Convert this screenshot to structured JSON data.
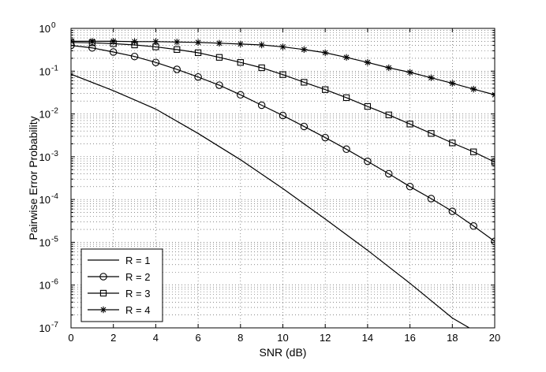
{
  "chart_data": {
    "type": "line",
    "xlabel": "SNR (dB)",
    "ylabel": "Pairwise Error Probability",
    "xlim": [
      0,
      20
    ],
    "ylim": [
      1e-07,
      1
    ],
    "yscale": "log",
    "grid": true,
    "legend_position": "bottom-left",
    "x_ticks": [
      0,
      2,
      4,
      6,
      8,
      10,
      12,
      14,
      16,
      18,
      20
    ],
    "y_ticks": [
      {
        "base": "10",
        "exp": "-7",
        "value": 1e-07
      },
      {
        "base": "10",
        "exp": "-6",
        "value": 1e-06
      },
      {
        "base": "10",
        "exp": "-5",
        "value": 1e-05
      },
      {
        "base": "10",
        "exp": "-4",
        "value": 0.0001
      },
      {
        "base": "10",
        "exp": "-3",
        "value": 0.001
      },
      {
        "base": "10",
        "exp": "-2",
        "value": 0.01
      },
      {
        "base": "10",
        "exp": "-1",
        "value": 0.1
      },
      {
        "base": "10",
        "exp": "0",
        "value": 1
      }
    ],
    "series": [
      {
        "name": "R = 1",
        "marker": "none",
        "x": [
          0,
          2,
          4,
          6,
          8,
          10,
          12,
          14,
          16,
          18,
          18.8
        ],
        "y": [
          0.085,
          0.035,
          0.013,
          0.0035,
          0.00085,
          0.00018,
          3.5e-05,
          6.5e-06,
          1.1e-06,
          1.7e-07,
          1e-07
        ]
      },
      {
        "name": "R = 2",
        "marker": "circle",
        "x": [
          0,
          1,
          2,
          3,
          4,
          5,
          6,
          7,
          8,
          9,
          10,
          11,
          12,
          13,
          14,
          15,
          16,
          17,
          18,
          19,
          20
        ],
        "y": [
          0.4,
          0.35,
          0.28,
          0.22,
          0.16,
          0.11,
          0.073,
          0.047,
          0.028,
          0.016,
          0.0092,
          0.0051,
          0.0028,
          0.0015,
          0.00078,
          0.0004,
          0.0002,
          0.000105,
          5.3e-05,
          2.4e-05,
          1.05e-05
        ]
      },
      {
        "name": "R = 3",
        "marker": "square",
        "x": [
          0,
          1,
          2,
          3,
          4,
          5,
          6,
          7,
          8,
          9,
          10,
          11,
          12,
          13,
          14,
          15,
          16,
          17,
          18,
          19,
          20
        ],
        "y": [
          0.47,
          0.46,
          0.44,
          0.41,
          0.37,
          0.32,
          0.27,
          0.21,
          0.16,
          0.12,
          0.083,
          0.055,
          0.037,
          0.024,
          0.015,
          0.0095,
          0.0058,
          0.0035,
          0.0021,
          0.0013,
          0.00075
        ]
      },
      {
        "name": "R = 4",
        "marker": "star",
        "x": [
          0,
          1,
          2,
          3,
          4,
          5,
          6,
          7,
          8,
          9,
          10,
          11,
          12,
          13,
          14,
          15,
          16,
          17,
          18,
          19,
          20
        ],
        "y": [
          0.5,
          0.5,
          0.5,
          0.49,
          0.49,
          0.48,
          0.47,
          0.45,
          0.43,
          0.41,
          0.37,
          0.32,
          0.27,
          0.21,
          0.16,
          0.12,
          0.094,
          0.07,
          0.052,
          0.038,
          0.028
        ]
      }
    ]
  }
}
